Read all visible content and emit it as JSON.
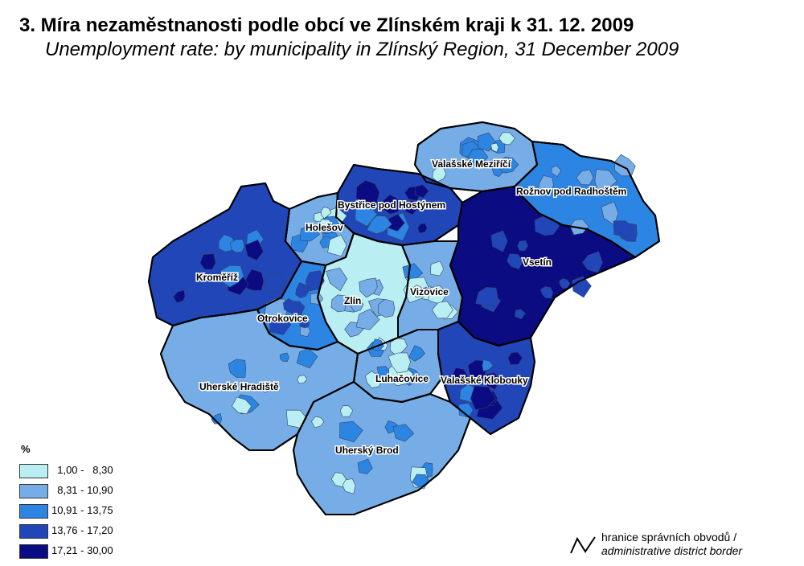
{
  "title": {
    "cz": "3. Míra nezaměstnanosti podle obcí ve Zlínském kraji k 31. 12. 2009",
    "en": "Unemployment rate: by municipality in Zlínský Region, 31 December 2009"
  },
  "legend": {
    "unit": "%",
    "classes": [
      {
        "label": "  1,00 -   8,30",
        "color": "#b9eef2"
      },
      {
        "label": "  8,31 - 10,90",
        "color": "#77ade6"
      },
      {
        "label": "10,91 - 13,75",
        "color": "#2c85e3"
      },
      {
        "label": "13,76 - 17,20",
        "color": "#2146b8"
      },
      {
        "label": "17,21 - 30,00",
        "color": "#0b0b82"
      }
    ],
    "border": {
      "cz": "hranice správních obvodů /",
      "en": "administrative district border"
    }
  },
  "towns": [
    {
      "name": "Valašské Meziříčí"
    },
    {
      "name": "Rožnov pod Radhoštěm"
    },
    {
      "name": "Bystřice pod Hostýnem"
    },
    {
      "name": "Holešov"
    },
    {
      "name": "Kroměříž"
    },
    {
      "name": "Vsetín"
    },
    {
      "name": "Zlín"
    },
    {
      "name": "Vizovice"
    },
    {
      "name": "Otrokovice"
    },
    {
      "name": "Luhačovice"
    },
    {
      "name": "Valašské Klobouky"
    },
    {
      "name": "Uherské Hradiště"
    },
    {
      "name": "Uherský Brod"
    }
  ],
  "districts": [
    {
      "name": "Valašské Meziříčí",
      "class": 1
    },
    {
      "name": "Rožnov pod Radhoštěm",
      "class": 2
    },
    {
      "name": "Bystřice pod Hostýnem",
      "class": 3
    },
    {
      "name": "Holešov",
      "class": 1
    },
    {
      "name": "Kroměříž",
      "class": 3
    },
    {
      "name": "Vsetín",
      "class": 4
    },
    {
      "name": "Zlín",
      "class": 0
    },
    {
      "name": "Vizovice",
      "class": 1
    },
    {
      "name": "Otrokovice",
      "class": 2
    },
    {
      "name": "Luhačovice",
      "class": 1
    },
    {
      "name": "Valašské Klobouky",
      "class": 3
    },
    {
      "name": "Uherské Hradiště",
      "class": 1
    },
    {
      "name": "Uherský Brod",
      "class": 1
    }
  ]
}
